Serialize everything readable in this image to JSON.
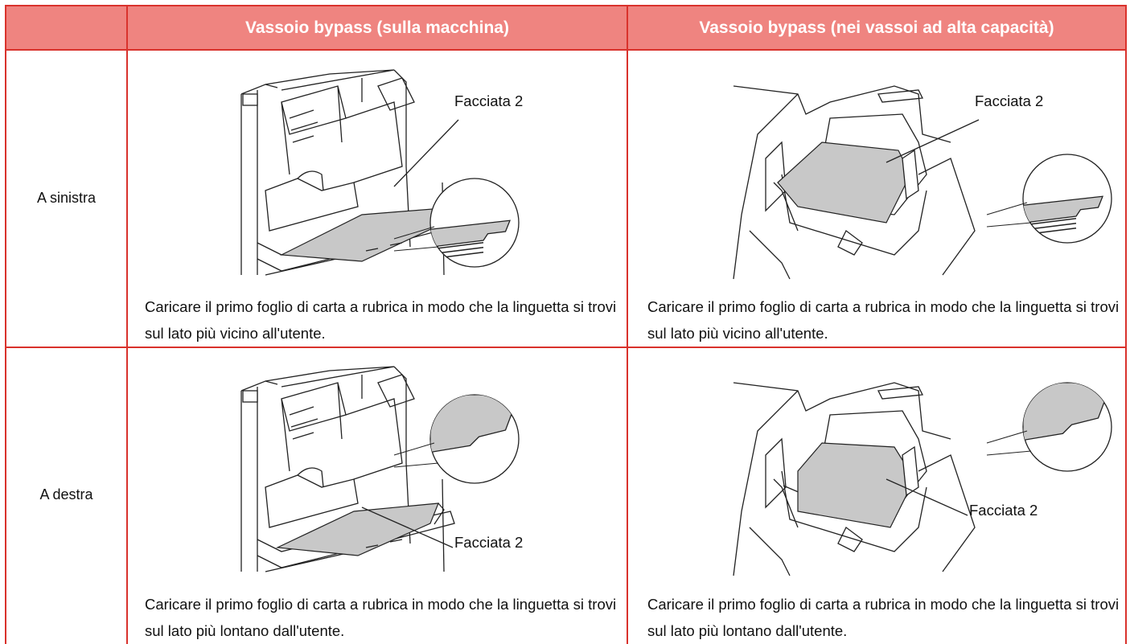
{
  "table": {
    "header": {
      "columns": [
        "Vassoio bypass (sulla macchina)",
        "Vassoio bypass (nei vassoi ad alta capacità)"
      ]
    },
    "rows": [
      {
        "label": "A sinistra",
        "cells": [
          {
            "callout": "Facciata 2",
            "caption": "Caricare il primo foglio di carta a rubrica in modo che la linguetta si trovi sul lato più vicino all'utente."
          },
          {
            "callout": "Facciata 2",
            "caption": "Caricare il primo foglio di carta a rubrica in modo che la linguetta si trovi sul lato più vicino all'utente."
          }
        ]
      },
      {
        "label": "A destra",
        "cells": [
          {
            "callout": "Facciata 2",
            "caption": "Caricare il primo foglio di carta a rubrica in modo che la linguetta si trovi sul lato più lontano dall'utente."
          },
          {
            "callout": "Facciata 2",
            "caption": "Caricare il primo foglio di carta a rubrica in modo che la linguetta si trovi sul lato più lontano dall'utente."
          }
        ]
      }
    ]
  }
}
